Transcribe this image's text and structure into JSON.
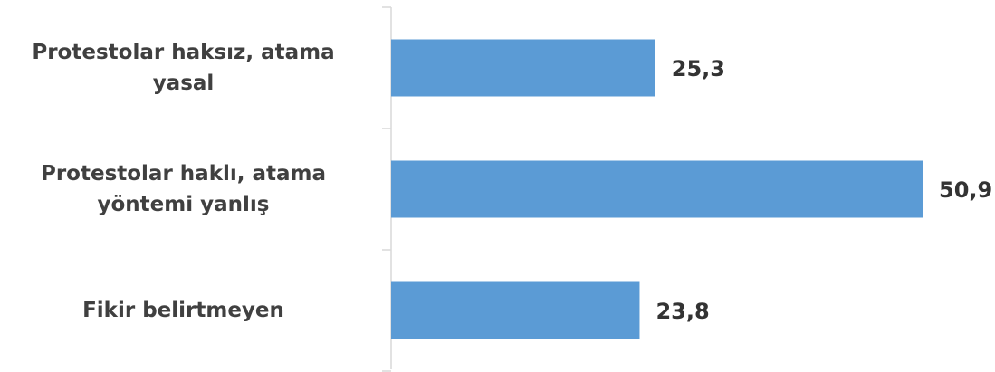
{
  "chart_data": {
    "type": "bar",
    "orientation": "horizontal",
    "categories": [
      "Protestolar haksız, atama yasal",
      "Protestolar haklı, atama yöntemi yanlış",
      "Fikir belirtmeyen"
    ],
    "values": [
      25.3,
      50.9,
      23.8
    ],
    "value_labels": [
      "25,3",
      "50,9",
      "23,8"
    ],
    "color": "#5b9bd5"
  }
}
